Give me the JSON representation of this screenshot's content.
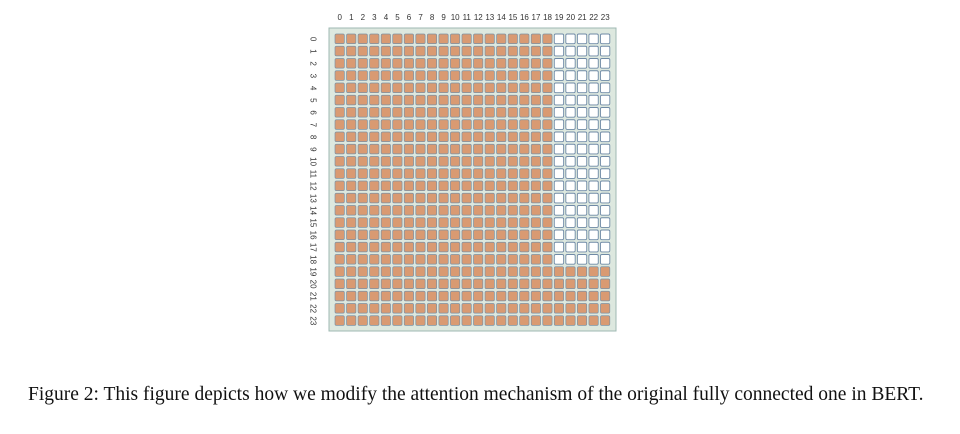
{
  "figure": {
    "row_labels": [
      "0",
      "1",
      "2",
      "3",
      "4",
      "5",
      "6",
      "7",
      "8",
      "9",
      "10",
      "11",
      "12",
      "13",
      "14",
      "15",
      "16",
      "17",
      "18",
      "19",
      "20",
      "21",
      "22",
      "23"
    ],
    "col_labels": [
      "0",
      "1",
      "2",
      "3",
      "4",
      "5",
      "6",
      "7",
      "8",
      "9",
      "10",
      "11",
      "12",
      "13",
      "14",
      "15",
      "16",
      "17",
      "18",
      "19",
      "20",
      "21",
      "22",
      "23"
    ],
    "unmasked_col_start": 19,
    "unmasked_row_end": 19,
    "colors": {
      "panel_bg": "#dde8df",
      "panel_border": "#9fb9b3",
      "cell_filled": "#d99a72",
      "cell_filled_edge": "#7e92a4",
      "cell_empty": "#ffffff",
      "cell_empty_edge": "#6f8aa6"
    }
  },
  "caption": {
    "text": "Figure 2: This figure depicts how we modify the attention mechanism of the original fully connected one in BERT."
  }
}
